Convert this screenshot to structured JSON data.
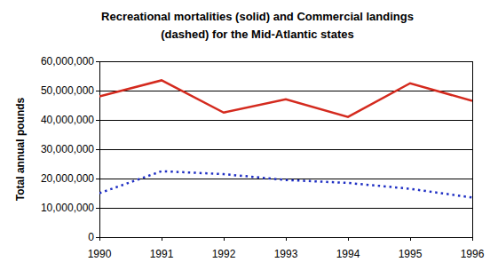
{
  "chart_data": {
    "type": "line",
    "title": "Recreational mortalities (solid) and Commercial landings\n(dashed) for the Mid-Atlantic states",
    "y_label": "Total annual pounds",
    "x": [
      1990,
      1991,
      1992,
      1993,
      1994,
      1995,
      1996
    ],
    "series": [
      {
        "color": "#d42a1e",
        "line_style": "solid",
        "values": [
          48000000,
          53500000,
          42500000,
          47000000,
          41000000,
          52500000,
          46500000
        ]
      },
      {
        "color": "#1f2fc4",
        "line_style": "dotted",
        "values": [
          15000000,
          22500000,
          21500000,
          19500000,
          18500000,
          16500000,
          13500000
        ]
      }
    ],
    "xlim": [
      1990,
      1996
    ],
    "xticks": [
      1990,
      1991,
      1992,
      1993,
      1994,
      1995,
      1996
    ],
    "ylim": [
      0,
      60000000
    ],
    "yticks": [
      0,
      {
        "value": 10000000,
        "label": "10,000,000"
      },
      {
        "value": 20000000,
        "label": "20,000,000"
      },
      {
        "value": 30000000,
        "label": "30,000,000"
      },
      {
        "value": 40000000,
        "label": "40,000,000"
      },
      {
        "value": 50000000,
        "label": "50,000,000"
      },
      {
        "value": 60000000,
        "label": "60,000,000"
      }
    ],
    "grid": true
  }
}
